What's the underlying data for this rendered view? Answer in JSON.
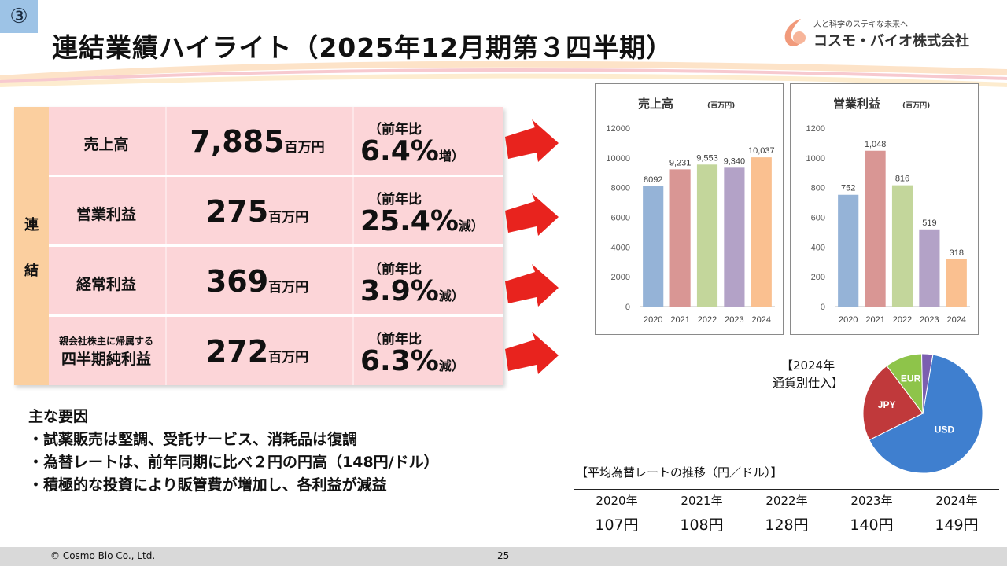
{
  "badge": "③",
  "title": "連結業績ハイライト（2025年12月期第３四半期）",
  "logo": {
    "tagline": "人と科学のステキな未来へ",
    "company": "コスモ・バイオ株式会社"
  },
  "side_label": [
    "連",
    "結"
  ],
  "kpis": [
    {
      "label_small": "",
      "label": "売上高",
      "value": "7,885",
      "unit": "百万円",
      "cap": "（前年比",
      "pct": "6.4%",
      "dir": "増）"
    },
    {
      "label_small": "",
      "label": "営業利益",
      "value": "275",
      "unit": "百万円",
      "cap": "（前年比",
      "pct": "25.4%",
      "dir": "減）"
    },
    {
      "label_small": "",
      "label": "経常利益",
      "value": "369",
      "unit": "百万円",
      "cap": "（前年比",
      "pct": "3.9%",
      "dir": "減）"
    },
    {
      "label_small": "親会社株主に帰属する",
      "label": "四半期純利益",
      "value": "272",
      "unit": "百万円",
      "cap": "（前年比",
      "pct": "6.3%",
      "dir": "減）"
    }
  ],
  "factors": {
    "heading": "主な要因",
    "items": [
      "・試薬販売は堅調、受託サービス、消耗品は復調",
      "・為替レートは、前年同期に比べ２円の円高（148円/ドル）",
      "・積極的な投資により販管費が増加し、各利益が減益"
    ]
  },
  "chart_data": [
    {
      "type": "bar",
      "title": "売上高",
      "unit": "(百万円)",
      "categories": [
        "2020",
        "2021",
        "2022",
        "2023",
        "2024"
      ],
      "values": [
        8092,
        9231,
        9553,
        9340,
        10037
      ],
      "data_labels": [
        "8092",
        "9,231",
        "9,553",
        "9,340",
        "10,037"
      ],
      "yticks": [
        "0",
        "2000",
        "4000",
        "6000",
        "8000",
        "10000",
        "12000"
      ],
      "ylim": [
        0,
        12000
      ],
      "colors": [
        "#95b3d7",
        "#d99694",
        "#c3d69b",
        "#b3a2c7",
        "#fac090"
      ],
      "grid": false
    },
    {
      "type": "bar",
      "title": "営業利益",
      "unit": "(百万円)",
      "categories": [
        "2020",
        "2021",
        "2022",
        "2023",
        "2024"
      ],
      "values": [
        752,
        1048,
        816,
        519,
        318
      ],
      "data_labels": [
        "752",
        "1,048",
        "816",
        "519",
        "318"
      ],
      "yticks": [
        "0",
        "200",
        "400",
        "600",
        "800",
        "1000",
        "1200"
      ],
      "ylim": [
        0,
        1200
      ],
      "colors": [
        "#95b3d7",
        "#d99694",
        "#c3d69b",
        "#b3a2c7",
        "#fac090"
      ],
      "grid": false
    },
    {
      "type": "pie",
      "title": "【2024年 通貨別仕入】",
      "labels": [
        "USD",
        "JPY",
        "EUR",
        ""
      ],
      "values": [
        65,
        22,
        10,
        3
      ],
      "colors": [
        "#3f7fcf",
        "#c0393b",
        "#8ec44a",
        "#7b5fb0"
      ]
    }
  ],
  "pie_title_lines": [
    "【2024年",
    "通貨別仕入】"
  ],
  "rates": {
    "title": "【平均為替レートの推移（円／ドル）】",
    "years": [
      "2020年",
      "2021年",
      "2022年",
      "2023年",
      "2024年"
    ],
    "values": [
      "107円",
      "108円",
      "128円",
      "140円",
      "149円"
    ]
  },
  "footer": {
    "copyright": "©  Cosmo Bio Co., Ltd.",
    "page": "25"
  }
}
